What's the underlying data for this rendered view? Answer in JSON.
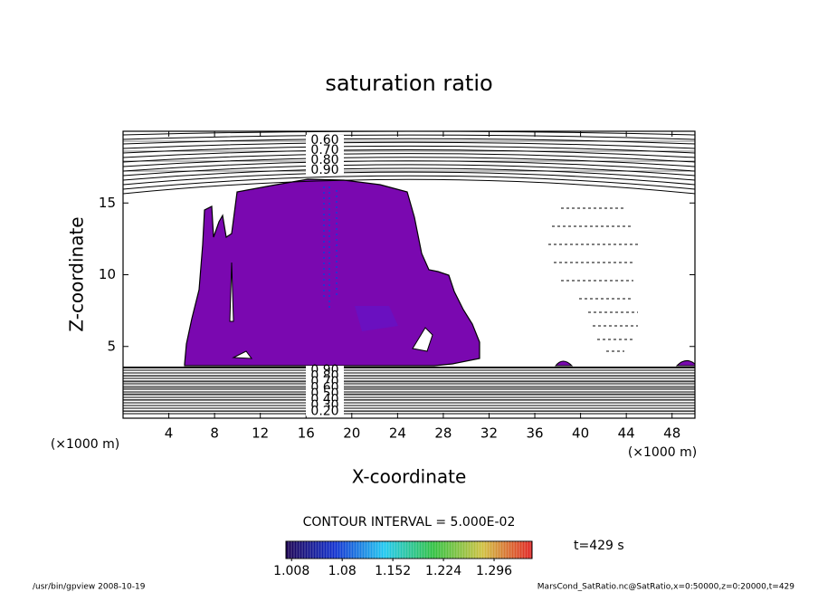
{
  "chart_data": {
    "type": "contour",
    "title": "saturation ratio",
    "x_label": "X-coordinate",
    "y_label": "Z-coordinate",
    "x_unit": "(×1000 m)",
    "xlim": [
      0,
      50
    ],
    "xticks": [
      4,
      8,
      12,
      16,
      20,
      24,
      28,
      32,
      36,
      40,
      44,
      48
    ],
    "ylim": [
      0,
      20
    ],
    "yticks": [
      5,
      10,
      15
    ],
    "upper_contours": [
      {
        "value": 0.6,
        "label": "0.60"
      },
      {
        "value": 0.7,
        "label": "0.70"
      },
      {
        "value": 0.8,
        "label": "0.80"
      },
      {
        "value": 0.9,
        "label": "0.90"
      }
    ],
    "lower_contours": [
      {
        "value": 0.9,
        "label": "0.90"
      },
      {
        "value": 0.8,
        "label": "0.80"
      },
      {
        "value": 0.7,
        "label": "0.70"
      },
      {
        "value": 0.6,
        "label": "0.60"
      },
      {
        "value": 0.5,
        "label": "0.50"
      },
      {
        "value": 0.4,
        "label": "0.40"
      },
      {
        "value": 0.3,
        "label": "0.30"
      },
      {
        "value": 0.2,
        "label": "0.20"
      }
    ],
    "contour_interval": "CONTOUR INTERVAL = 5.000E-02",
    "colorbar": {
      "clim": [
        1.0,
        1.35
      ],
      "ticks": [
        1.008,
        1.08,
        1.152,
        1.224,
        1.296
      ],
      "colors": [
        "#1a0050",
        "#1030d0",
        "#20c8f0",
        "#30c040",
        "#d0c040",
        "#e02020"
      ]
    },
    "time_label": "t=429 s",
    "footer_left": "/usr/bin/gpview   2008-10-19",
    "footer_right": "MarsCond_SatRatio.nc@SatRatio,x=0:50000,z=0:20000,t=429"
  }
}
